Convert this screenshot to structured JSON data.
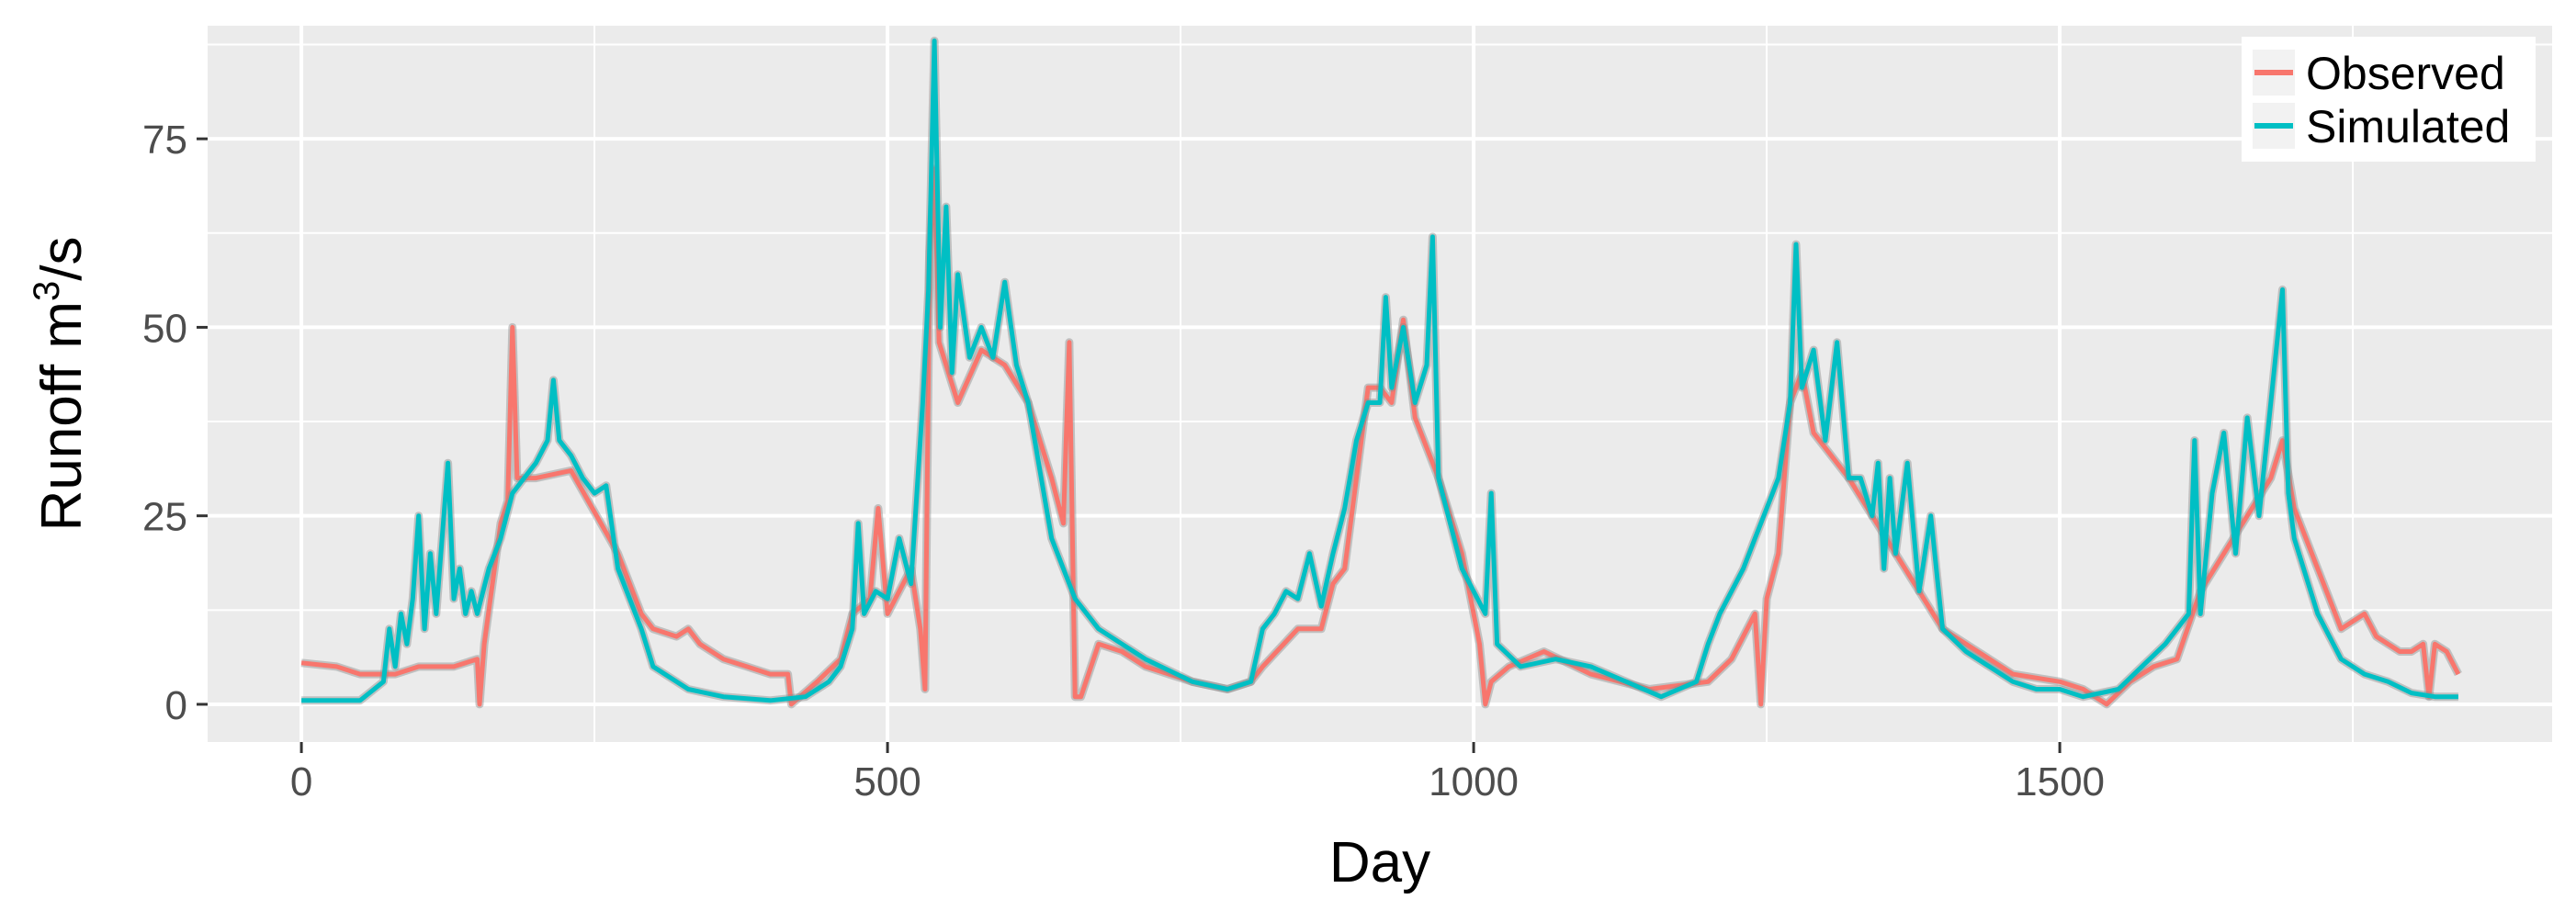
{
  "chart_data": {
    "type": "line",
    "title": "",
    "xlabel": "Day",
    "ylabel": "Runoff  m",
    "ylabel_sup": "3",
    "ylabel_tail": "/s",
    "xlim": [
      -80,
      1920
    ],
    "ylim": [
      -5,
      90
    ],
    "x_ticks": [
      0,
      500,
      1000,
      1500
    ],
    "y_ticks": [
      0,
      25,
      50,
      75
    ],
    "grid": true,
    "legend_position": "top-right",
    "colors": {
      "Observed": "#f8766d",
      "Simulated": "#00bfc4",
      "panel": "#ebebeb",
      "grid": "#ffffff"
    },
    "series": [
      {
        "name": "Observed",
        "points": [
          [
            0,
            5.5
          ],
          [
            30,
            5
          ],
          [
            50,
            4
          ],
          [
            80,
            4
          ],
          [
            100,
            5
          ],
          [
            130,
            5
          ],
          [
            150,
            6
          ],
          [
            152,
            0
          ],
          [
            156,
            8
          ],
          [
            170,
            24
          ],
          [
            176,
            27
          ],
          [
            180,
            50
          ],
          [
            184,
            30
          ],
          [
            200,
            30
          ],
          [
            230,
            31
          ],
          [
            270,
            20
          ],
          [
            290,
            12
          ],
          [
            300,
            10
          ],
          [
            320,
            9
          ],
          [
            330,
            10
          ],
          [
            340,
            8
          ],
          [
            360,
            6
          ],
          [
            380,
            5
          ],
          [
            400,
            4
          ],
          [
            415,
            4
          ],
          [
            418,
            0
          ],
          [
            440,
            3
          ],
          [
            460,
            6
          ],
          [
            470,
            12
          ],
          [
            485,
            14
          ],
          [
            492,
            26
          ],
          [
            500,
            12
          ],
          [
            520,
            18
          ],
          [
            528,
            10
          ],
          [
            532,
            2
          ],
          [
            536,
            60
          ],
          [
            540,
            71
          ],
          [
            544,
            48
          ],
          [
            560,
            40
          ],
          [
            580,
            47
          ],
          [
            600,
            45
          ],
          [
            620,
            40
          ],
          [
            640,
            30
          ],
          [
            650,
            24
          ],
          [
            655,
            48
          ],
          [
            660,
            1
          ],
          [
            665,
            1
          ],
          [
            680,
            8
          ],
          [
            700,
            7
          ],
          [
            720,
            5
          ],
          [
            760,
            3
          ],
          [
            790,
            2
          ],
          [
            810,
            3
          ],
          [
            820,
            5
          ],
          [
            850,
            10
          ],
          [
            870,
            10
          ],
          [
            880,
            16
          ],
          [
            890,
            18
          ],
          [
            900,
            30
          ],
          [
            910,
            42
          ],
          [
            920,
            42
          ],
          [
            930,
            40
          ],
          [
            940,
            51
          ],
          [
            950,
            38
          ],
          [
            970,
            30
          ],
          [
            990,
            20
          ],
          [
            1005,
            8
          ],
          [
            1010,
            0
          ],
          [
            1015,
            3
          ],
          [
            1030,
            5
          ],
          [
            1060,
            7
          ],
          [
            1100,
            4
          ],
          [
            1150,
            2
          ],
          [
            1200,
            3
          ],
          [
            1220,
            6
          ],
          [
            1240,
            12
          ],
          [
            1245,
            0
          ],
          [
            1250,
            14
          ],
          [
            1260,
            20
          ],
          [
            1270,
            40
          ],
          [
            1280,
            44
          ],
          [
            1290,
            36
          ],
          [
            1320,
            30
          ],
          [
            1340,
            25
          ],
          [
            1360,
            20
          ],
          [
            1380,
            15
          ],
          [
            1400,
            10
          ],
          [
            1430,
            7
          ],
          [
            1460,
            4
          ],
          [
            1500,
            3
          ],
          [
            1520,
            2
          ],
          [
            1540,
            0
          ],
          [
            1560,
            3
          ],
          [
            1580,
            5
          ],
          [
            1600,
            6
          ],
          [
            1620,
            15
          ],
          [
            1640,
            20
          ],
          [
            1660,
            25
          ],
          [
            1680,
            30
          ],
          [
            1690,
            35
          ],
          [
            1700,
            26
          ],
          [
            1720,
            18
          ],
          [
            1740,
            10
          ],
          [
            1760,
            12
          ],
          [
            1770,
            9
          ],
          [
            1790,
            7
          ],
          [
            1800,
            7
          ],
          [
            1810,
            8
          ],
          [
            1815,
            1
          ],
          [
            1820,
            8
          ],
          [
            1830,
            7
          ],
          [
            1840,
            4
          ]
        ]
      },
      {
        "name": "Simulated",
        "points": [
          [
            0,
            0.5
          ],
          [
            50,
            0.5
          ],
          [
            70,
            3
          ],
          [
            75,
            10
          ],
          [
            80,
            5
          ],
          [
            85,
            12
          ],
          [
            90,
            8
          ],
          [
            95,
            14
          ],
          [
            100,
            25
          ],
          [
            105,
            10
          ],
          [
            110,
            20
          ],
          [
            115,
            12
          ],
          [
            120,
            22
          ],
          [
            125,
            32
          ],
          [
            130,
            14
          ],
          [
            135,
            18
          ],
          [
            140,
            12
          ],
          [
            145,
            15
          ],
          [
            150,
            12
          ],
          [
            160,
            18
          ],
          [
            170,
            22
          ],
          [
            180,
            28
          ],
          [
            190,
            30
          ],
          [
            200,
            32
          ],
          [
            210,
            35
          ],
          [
            215,
            43
          ],
          [
            220,
            35
          ],
          [
            230,
            33
          ],
          [
            240,
            30
          ],
          [
            250,
            28
          ],
          [
            260,
            29
          ],
          [
            270,
            18
          ],
          [
            290,
            10
          ],
          [
            300,
            5
          ],
          [
            330,
            2
          ],
          [
            360,
            1
          ],
          [
            400,
            0.5
          ],
          [
            430,
            1
          ],
          [
            450,
            3
          ],
          [
            460,
            5
          ],
          [
            470,
            10
          ],
          [
            475,
            24
          ],
          [
            480,
            12
          ],
          [
            490,
            15
          ],
          [
            500,
            14
          ],
          [
            510,
            22
          ],
          [
            520,
            16
          ],
          [
            530,
            40
          ],
          [
            535,
            55
          ],
          [
            540,
            88
          ],
          [
            545,
            50
          ],
          [
            550,
            66
          ],
          [
            555,
            44
          ],
          [
            560,
            57
          ],
          [
            570,
            46
          ],
          [
            580,
            50
          ],
          [
            590,
            46
          ],
          [
            600,
            56
          ],
          [
            610,
            45
          ],
          [
            620,
            40
          ],
          [
            640,
            22
          ],
          [
            660,
            14
          ],
          [
            680,
            10
          ],
          [
            700,
            8
          ],
          [
            720,
            6
          ],
          [
            760,
            3
          ],
          [
            790,
            2
          ],
          [
            810,
            3
          ],
          [
            820,
            10
          ],
          [
            830,
            12
          ],
          [
            840,
            15
          ],
          [
            850,
            14
          ],
          [
            860,
            20
          ],
          [
            870,
            13
          ],
          [
            880,
            20
          ],
          [
            890,
            26
          ],
          [
            900,
            35
          ],
          [
            910,
            40
          ],
          [
            920,
            40
          ],
          [
            925,
            54
          ],
          [
            930,
            42
          ],
          [
            940,
            50
          ],
          [
            950,
            40
          ],
          [
            960,
            45
          ],
          [
            965,
            62
          ],
          [
            970,
            30
          ],
          [
            990,
            18
          ],
          [
            1010,
            12
          ],
          [
            1015,
            28
          ],
          [
            1020,
            8
          ],
          [
            1040,
            5
          ],
          [
            1070,
            6
          ],
          [
            1100,
            5
          ],
          [
            1130,
            3
          ],
          [
            1160,
            1
          ],
          [
            1190,
            3
          ],
          [
            1200,
            8
          ],
          [
            1210,
            12
          ],
          [
            1220,
            15
          ],
          [
            1230,
            18
          ],
          [
            1240,
            22
          ],
          [
            1250,
            26
          ],
          [
            1260,
            30
          ],
          [
            1270,
            40
          ],
          [
            1275,
            61
          ],
          [
            1280,
            42
          ],
          [
            1290,
            47
          ],
          [
            1300,
            35
          ],
          [
            1310,
            48
          ],
          [
            1320,
            30
          ],
          [
            1330,
            30
          ],
          [
            1340,
            25
          ],
          [
            1345,
            32
          ],
          [
            1350,
            18
          ],
          [
            1355,
            30
          ],
          [
            1360,
            20
          ],
          [
            1370,
            32
          ],
          [
            1380,
            15
          ],
          [
            1390,
            25
          ],
          [
            1400,
            10
          ],
          [
            1420,
            7
          ],
          [
            1440,
            5
          ],
          [
            1460,
            3
          ],
          [
            1480,
            2
          ],
          [
            1500,
            2
          ],
          [
            1520,
            1
          ],
          [
            1550,
            2
          ],
          [
            1570,
            5
          ],
          [
            1590,
            8
          ],
          [
            1610,
            12
          ],
          [
            1615,
            35
          ],
          [
            1620,
            12
          ],
          [
            1630,
            28
          ],
          [
            1640,
            36
          ],
          [
            1650,
            20
          ],
          [
            1660,
            38
          ],
          [
            1670,
            25
          ],
          [
            1680,
            40
          ],
          [
            1690,
            55
          ],
          [
            1695,
            28
          ],
          [
            1700,
            22
          ],
          [
            1720,
            12
          ],
          [
            1740,
            6
          ],
          [
            1760,
            4
          ],
          [
            1780,
            3
          ],
          [
            1800,
            1.5
          ],
          [
            1820,
            1
          ],
          [
            1840,
            1
          ]
        ]
      }
    ]
  }
}
